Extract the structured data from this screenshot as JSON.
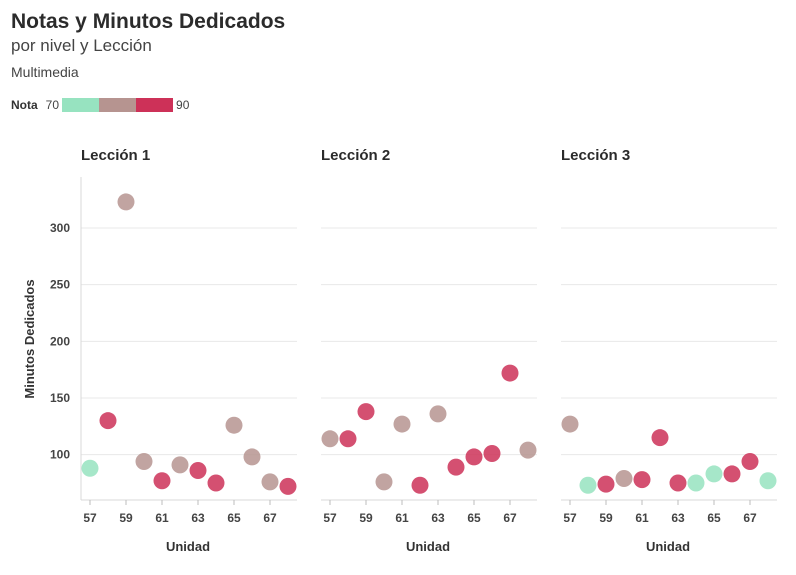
{
  "title": "Notas y Minutos Dedicados",
  "subtitle": "por nivel y Lección",
  "caption": "Multimedia",
  "legend": {
    "title": "Nota",
    "min_label": "70",
    "max_label": "90"
  },
  "colors": {
    "low": "#97e3c0",
    "mid": "#b69490",
    "high": "#cd3158",
    "grid": "#e8e8e8"
  },
  "chart_data": {
    "type": "scatter",
    "xlabel": "Unidad",
    "ylabel": "Minutos Dedicados",
    "xlim": [
      56.5,
      68.5
    ],
    "ylim": [
      60,
      345
    ],
    "xticks": [
      57,
      59,
      61,
      63,
      65,
      67
    ],
    "yticks": [
      100,
      150,
      200,
      250,
      300
    ],
    "color_scale": {
      "variable": "Nota",
      "min": 70,
      "max": 90,
      "steps": [
        "#97e3c0",
        "#b69490",
        "#cd3158"
      ]
    },
    "panels": [
      {
        "name": "Lección 1",
        "points": [
          {
            "x": 57,
            "y": 88,
            "nota": 72
          },
          {
            "x": 58,
            "y": 130,
            "nota": 88
          },
          {
            "x": 59,
            "y": 323,
            "nota": 80
          },
          {
            "x": 60,
            "y": 94,
            "nota": 80
          },
          {
            "x": 61,
            "y": 77,
            "nota": 88
          },
          {
            "x": 62,
            "y": 91,
            "nota": 81
          },
          {
            "x": 63,
            "y": 86,
            "nota": 87
          },
          {
            "x": 64,
            "y": 75,
            "nota": 88
          },
          {
            "x": 65,
            "y": 126,
            "nota": 80
          },
          {
            "x": 66,
            "y": 98,
            "nota": 80
          },
          {
            "x": 67,
            "y": 76,
            "nota": 80
          },
          {
            "x": 68,
            "y": 72,
            "nota": 88
          }
        ]
      },
      {
        "name": "Lección 2",
        "points": [
          {
            "x": 57,
            "y": 114,
            "nota": 80
          },
          {
            "x": 58,
            "y": 114,
            "nota": 88
          },
          {
            "x": 59,
            "y": 138,
            "nota": 88
          },
          {
            "x": 60,
            "y": 76,
            "nota": 80
          },
          {
            "x": 61,
            "y": 127,
            "nota": 80
          },
          {
            "x": 62,
            "y": 73,
            "nota": 88
          },
          {
            "x": 63,
            "y": 136,
            "nota": 80
          },
          {
            "x": 64,
            "y": 89,
            "nota": 88
          },
          {
            "x": 65,
            "y": 98,
            "nota": 88
          },
          {
            "x": 66,
            "y": 101,
            "nota": 88
          },
          {
            "x": 67,
            "y": 172,
            "nota": 88
          },
          {
            "x": 68,
            "y": 104,
            "nota": 80
          }
        ]
      },
      {
        "name": "Lección 3",
        "points": [
          {
            "x": 57,
            "y": 127,
            "nota": 80
          },
          {
            "x": 58,
            "y": 73,
            "nota": 72
          },
          {
            "x": 59,
            "y": 74,
            "nota": 88
          },
          {
            "x": 60,
            "y": 79,
            "nota": 80
          },
          {
            "x": 61,
            "y": 78,
            "nota": 88
          },
          {
            "x": 62,
            "y": 115,
            "nota": 88
          },
          {
            "x": 63,
            "y": 75,
            "nota": 88
          },
          {
            "x": 64,
            "y": 75,
            "nota": 72
          },
          {
            "x": 65,
            "y": 83,
            "nota": 72
          },
          {
            "x": 66,
            "y": 83,
            "nota": 88
          },
          {
            "x": 67,
            "y": 94,
            "nota": 88
          },
          {
            "x": 68,
            "y": 77,
            "nota": 72
          }
        ]
      }
    ]
  }
}
